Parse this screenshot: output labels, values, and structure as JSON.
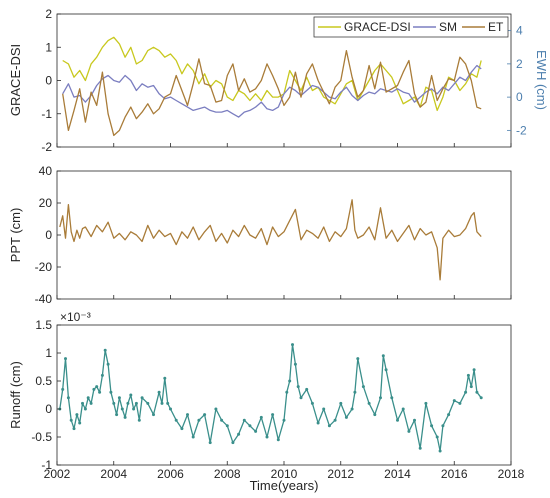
{
  "chart_data": [
    {
      "type": "line",
      "panel": "top",
      "xlim": [
        2002,
        2018
      ],
      "ylim": [
        -2,
        2
      ],
      "y2lim": [
        -3,
        5
      ],
      "ylabel": "GRACE-DSI",
      "y2label": "EWH (cm)",
      "yticks": [
        "-2",
        "-1",
        "0",
        "1",
        "2"
      ],
      "y2ticks": [
        "-2",
        "0",
        "2",
        "4"
      ],
      "grid": false,
      "legend_position": "top-right",
      "series": [
        {
          "name": "GRACE-DSI",
          "axis": "left",
          "color": "#c8c81e",
          "x": [
            2002.2,
            2002.4,
            2002.6,
            2002.8,
            2003.0,
            2003.2,
            2003.4,
            2003.6,
            2003.8,
            2004.0,
            2004.2,
            2004.4,
            2004.6,
            2004.8,
            2005.0,
            2005.2,
            2005.4,
            2005.6,
            2005.8,
            2006.0,
            2006.2,
            2006.4,
            2006.6,
            2006.8,
            2007.0,
            2007.2,
            2007.4,
            2007.6,
            2007.8,
            2008.0,
            2008.2,
            2008.4,
            2008.6,
            2008.8,
            2009.0,
            2009.2,
            2009.4,
            2009.6,
            2009.8,
            2010.0,
            2010.2,
            2010.4,
            2010.6,
            2010.8,
            2011.0,
            2011.2,
            2011.4,
            2011.6,
            2011.8,
            2012.0,
            2012.2,
            2012.4,
            2012.6,
            2012.8,
            2013.0,
            2013.2,
            2013.4,
            2013.6,
            2013.8,
            2014.0,
            2014.2,
            2014.4,
            2014.6,
            2014.8,
            2015.0,
            2015.2,
            2015.4,
            2015.6,
            2015.8,
            2016.0,
            2016.2,
            2016.4,
            2016.6,
            2016.8,
            2016.95
          ],
          "values": [
            0.6,
            0.5,
            0.1,
            0.3,
            0.0,
            0.5,
            0.7,
            1.0,
            1.2,
            1.3,
            1.1,
            0.7,
            1.0,
            0.5,
            0.6,
            0.9,
            1.0,
            0.9,
            0.7,
            0.8,
            0.6,
            0.2,
            0.5,
            0.3,
            -0.1,
            0.2,
            -0.2,
            0.0,
            -0.1,
            -0.5,
            -0.6,
            -0.3,
            -0.4,
            -0.6,
            -0.4,
            -0.6,
            -0.3,
            -0.5,
            -0.5,
            -0.4,
            0.3,
            0.0,
            -0.3,
            0.1,
            -0.3,
            -0.2,
            -0.5,
            -0.6,
            -0.7,
            -0.4,
            -0.1,
            0.0,
            -0.6,
            -0.3,
            0.0,
            0.3,
            0.5,
            0.3,
            0.1,
            -0.3,
            -0.7,
            -0.6,
            -0.5,
            -0.8,
            -0.2,
            -0.3,
            -0.9,
            -0.5,
            0.1,
            0.0,
            -0.3,
            -0.1,
            0.2,
            0.1,
            0.6
          ]
        },
        {
          "name": "SM",
          "axis": "right",
          "color": "#7b7ec0",
          "x": [
            2002.2,
            2002.4,
            2002.6,
            2002.8,
            2003.0,
            2003.2,
            2003.4,
            2003.6,
            2003.8,
            2004.0,
            2004.2,
            2004.4,
            2004.6,
            2004.8,
            2005.0,
            2005.2,
            2005.4,
            2005.6,
            2005.8,
            2006.0,
            2006.2,
            2006.4,
            2006.6,
            2006.8,
            2007.0,
            2007.2,
            2007.4,
            2007.6,
            2007.8,
            2008.0,
            2008.2,
            2008.4,
            2008.6,
            2008.8,
            2009.0,
            2009.2,
            2009.4,
            2009.6,
            2009.8,
            2010.0,
            2010.2,
            2010.4,
            2010.6,
            2010.8,
            2011.0,
            2011.2,
            2011.4,
            2011.6,
            2011.8,
            2012.0,
            2012.2,
            2012.4,
            2012.6,
            2012.8,
            2013.0,
            2013.2,
            2013.4,
            2013.6,
            2013.8,
            2014.0,
            2014.2,
            2014.4,
            2014.6,
            2014.8,
            2015.0,
            2015.2,
            2015.4,
            2015.6,
            2015.8,
            2016.0,
            2016.2,
            2016.4,
            2016.6,
            2016.8,
            2016.95
          ],
          "values": [
            0.2,
            0.8,
            0.0,
            0.1,
            -0.3,
            0.1,
            0.7,
            1.1,
            1.3,
            1.0,
            0.9,
            1.3,
            1.0,
            0.4,
            0.8,
            0.6,
            0.7,
            0.2,
            -0.1,
            0.0,
            -0.2,
            -0.4,
            -0.6,
            -0.8,
            -0.7,
            -0.6,
            -0.8,
            -0.9,
            -0.9,
            -0.8,
            -1.0,
            -1.2,
            -0.9,
            -0.8,
            -0.6,
            -0.3,
            -0.7,
            -0.8,
            -0.6,
            0.2,
            0.6,
            0.4,
            0.1,
            0.4,
            0.7,
            0.6,
            0.3,
            0.0,
            -0.1,
            0.3,
            0.6,
            0.1,
            -0.2,
            0.1,
            0.3,
            0.2,
            0.5,
            0.4,
            0.3,
            0.5,
            0.3,
            0.2,
            -0.3,
            0.0,
            0.3,
            0.5,
            0.2,
            0.6,
            0.4,
            0.8,
            1.2,
            1.0,
            1.5,
            1.9,
            1.7
          ]
        },
        {
          "name": "ET",
          "axis": "right",
          "color": "#a97c39",
          "x": [
            2002.2,
            2002.4,
            2002.6,
            2002.8,
            2003.0,
            2003.2,
            2003.4,
            2003.6,
            2003.8,
            2004.0,
            2004.2,
            2004.4,
            2004.6,
            2004.8,
            2005.0,
            2005.2,
            2005.4,
            2005.6,
            2005.8,
            2006.0,
            2006.2,
            2006.4,
            2006.6,
            2006.8,
            2007.0,
            2007.2,
            2007.4,
            2007.6,
            2007.8,
            2008.0,
            2008.2,
            2008.4,
            2008.6,
            2008.8,
            2009.0,
            2009.2,
            2009.4,
            2009.6,
            2009.8,
            2010.0,
            2010.2,
            2010.4,
            2010.6,
            2010.8,
            2011.0,
            2011.2,
            2011.4,
            2011.6,
            2011.8,
            2012.0,
            2012.2,
            2012.4,
            2012.6,
            2012.8,
            2013.0,
            2013.2,
            2013.4,
            2013.6,
            2013.8,
            2014.0,
            2014.2,
            2014.4,
            2014.6,
            2014.8,
            2015.0,
            2015.2,
            2015.4,
            2015.6,
            2015.8,
            2016.0,
            2016.2,
            2016.4,
            2016.6,
            2016.8,
            2016.95
          ],
          "values": [
            0.2,
            -2.0,
            -0.8,
            0.5,
            -1.5,
            0.3,
            -0.5,
            1.5,
            -1.0,
            -2.3,
            -2.0,
            -1.2,
            -0.6,
            -1.3,
            -0.9,
            -0.4,
            -1.0,
            -0.7,
            0.0,
            0.2,
            1.3,
            0.4,
            -0.5,
            0.8,
            2.3,
            0.8,
            0.7,
            -0.3,
            -0.2,
            1.3,
            2.0,
            0.4,
            1.1,
            0.3,
            0.5,
            1.0,
            2.0,
            1.3,
            0.5,
            -0.5,
            0.0,
            1.5,
            0.0,
            1.4,
            2.0,
            1.0,
            0.3,
            -0.4,
            0.6,
            1.0,
            2.8,
            1.2,
            0.0,
            0.4,
            1.9,
            0.5,
            2.1,
            0.3,
            0.5,
            0.7,
            1.5,
            2.2,
            0.2,
            -0.6,
            -0.3,
            1.3,
            -0.2,
            0.5,
            1.1,
            1.0,
            2.4,
            2.0,
            1.0,
            -0.6,
            -0.7
          ]
        }
      ]
    },
    {
      "type": "line",
      "panel": "middle",
      "xlim": [
        2002,
        2018
      ],
      "ylim": [
        -40,
        40
      ],
      "ylabel": "PPT (cm)",
      "yticks": [
        "-40",
        "-20",
        "0",
        "20",
        "40"
      ],
      "grid": false,
      "series": [
        {
          "color": "#a97c39",
          "x": [
            2002.1,
            2002.2,
            2002.3,
            2002.4,
            2002.5,
            2002.6,
            2002.7,
            2002.8,
            2002.9,
            2003.0,
            2003.2,
            2003.4,
            2003.6,
            2003.8,
            2004.0,
            2004.2,
            2004.4,
            2004.6,
            2004.8,
            2005.0,
            2005.2,
            2005.4,
            2005.6,
            2005.8,
            2006.0,
            2006.2,
            2006.4,
            2006.6,
            2006.8,
            2007.0,
            2007.2,
            2007.4,
            2007.6,
            2007.8,
            2008.0,
            2008.2,
            2008.4,
            2008.6,
            2008.8,
            2009.0,
            2009.2,
            2009.4,
            2009.6,
            2009.8,
            2010.0,
            2010.2,
            2010.4,
            2010.6,
            2010.8,
            2011.0,
            2011.2,
            2011.4,
            2011.6,
            2011.8,
            2012.0,
            2012.2,
            2012.4,
            2012.5,
            2012.6,
            2012.8,
            2013.0,
            2013.2,
            2013.4,
            2013.6,
            2013.8,
            2014.0,
            2014.2,
            2014.4,
            2014.6,
            2014.8,
            2015.0,
            2015.2,
            2015.4,
            2015.5,
            2015.6,
            2015.8,
            2016.0,
            2016.2,
            2016.4,
            2016.6,
            2016.7,
            2016.8,
            2016.95
          ],
          "values": [
            5,
            12,
            -2,
            19,
            2,
            -4,
            3,
            -2,
            4,
            5,
            -1,
            6,
            2,
            8,
            -2,
            1,
            -3,
            2,
            0,
            -4,
            6,
            -2,
            3,
            -1,
            1,
            -6,
            2,
            -2,
            5,
            -3,
            2,
            6,
            -4,
            1,
            -5,
            3,
            -1,
            6,
            0,
            -2,
            4,
            -6,
            5,
            -1,
            2,
            9,
            16,
            -3,
            3,
            1,
            -2,
            5,
            -4,
            2,
            -1,
            4,
            22,
            3,
            -2,
            0,
            5,
            -3,
            17,
            -2,
            3,
            -4,
            1,
            6,
            -3,
            4,
            0,
            2,
            -8,
            -28,
            -2,
            3,
            -1,
            0,
            4,
            12,
            14,
            2,
            -1
          ]
        }
      ]
    },
    {
      "type": "line",
      "panel": "bottom",
      "xlim": [
        2002,
        2018
      ],
      "ylim": [
        -1,
        1.5
      ],
      "ylabel": "Runoff (cm)",
      "xlabel": "Time(years)",
      "exponent": "×10⁻³",
      "yticks": [
        "-1",
        "-0.5",
        "0",
        "0.5",
        "1",
        "1.5"
      ],
      "xticks": [
        "2002",
        "2004",
        "2006",
        "2008",
        "2010",
        "2012",
        "2014",
        "2016",
        "2018"
      ],
      "grid": false,
      "series": [
        {
          "color": "#3a8f8b",
          "x": [
            2002.1,
            2002.2,
            2002.3,
            2002.4,
            2002.5,
            2002.6,
            2002.7,
            2002.8,
            2002.9,
            2003.0,
            2003.1,
            2003.2,
            2003.3,
            2003.4,
            2003.5,
            2003.6,
            2003.7,
            2003.8,
            2003.9,
            2004.0,
            2004.1,
            2004.2,
            2004.3,
            2004.4,
            2004.5,
            2004.6,
            2004.7,
            2004.8,
            2004.9,
            2005.0,
            2005.2,
            2005.4,
            2005.6,
            2005.7,
            2005.8,
            2005.9,
            2006.0,
            2006.2,
            2006.4,
            2006.6,
            2006.8,
            2007.0,
            2007.2,
            2007.4,
            2007.6,
            2007.8,
            2008.0,
            2008.2,
            2008.4,
            2008.6,
            2008.8,
            2009.0,
            2009.2,
            2009.4,
            2009.6,
            2009.8,
            2010.0,
            2010.1,
            2010.2,
            2010.3,
            2010.4,
            2010.5,
            2010.6,
            2010.8,
            2011.0,
            2011.2,
            2011.4,
            2011.6,
            2011.8,
            2012.0,
            2012.2,
            2012.4,
            2012.5,
            2012.6,
            2012.8,
            2013.0,
            2013.2,
            2013.4,
            2013.5,
            2013.6,
            2013.8,
            2014.0,
            2014.2,
            2014.4,
            2014.6,
            2014.8,
            2015.0,
            2015.2,
            2015.4,
            2015.5,
            2015.6,
            2015.8,
            2016.0,
            2016.2,
            2016.4,
            2016.5,
            2016.6,
            2016.7,
            2016.8,
            2016.95
          ],
          "values": [
            0.0,
            0.35,
            0.9,
            0.2,
            -0.2,
            -0.35,
            -0.1,
            -0.25,
            0.1,
            0.0,
            0.2,
            0.1,
            0.35,
            0.4,
            0.3,
            0.6,
            1.05,
            0.8,
            0.3,
            0.1,
            -0.1,
            0.2,
            0.0,
            -0.15,
            0.1,
            0.25,
            0.0,
            0.1,
            -0.2,
            0.2,
            0.1,
            -0.1,
            0.3,
            0.1,
            0.55,
            0.1,
            0.0,
            -0.2,
            -0.35,
            -0.1,
            -0.5,
            -0.2,
            -0.1,
            -0.6,
            0.0,
            -0.2,
            -0.3,
            -0.6,
            -0.45,
            -0.2,
            -0.3,
            -0.4,
            -0.15,
            -0.5,
            -0.1,
            -0.55,
            -0.2,
            0.3,
            0.5,
            1.15,
            0.8,
            0.4,
            0.2,
            0.35,
            0.1,
            -0.25,
            0.0,
            -0.3,
            -0.2,
            0.1,
            -0.15,
            0.0,
            0.3,
            0.9,
            0.4,
            0.1,
            -0.1,
            0.2,
            0.95,
            0.7,
            0.2,
            -0.2,
            0.0,
            -0.4,
            -0.2,
            -0.7,
            0.1,
            -0.3,
            -0.5,
            -0.75,
            -0.3,
            -0.1,
            0.15,
            0.1,
            0.3,
            0.6,
            0.4,
            0.7,
            0.3,
            0.2
          ]
        }
      ]
    }
  ]
}
